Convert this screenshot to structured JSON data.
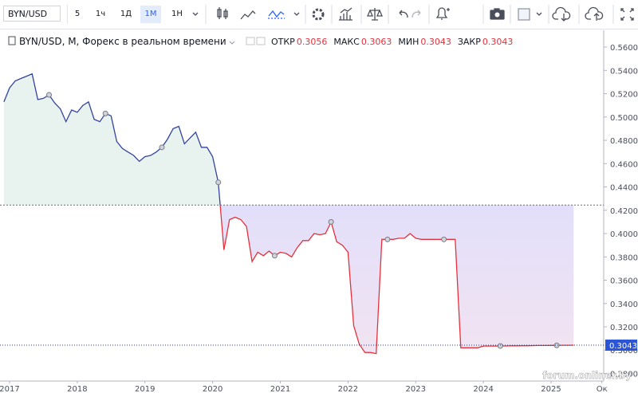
{
  "toolbar": {
    "symbol": "BYN/USD",
    "intervals": [
      "5",
      "1ч",
      "1Д",
      "1М",
      "1Н"
    ],
    "active_interval": 3
  },
  "chart_data": {
    "type": "baseline",
    "title": "BYN/USD, M, Форекс в реальном времени",
    "ohlc": [
      {
        "label": "ОТКР",
        "value": 0.3056
      },
      {
        "label": "МАКС",
        "value": 0.3063
      },
      {
        "label": "МИН",
        "value": 0.3043
      },
      {
        "label": "ЗАКР",
        "value": 0.3043
      }
    ],
    "categories": [
      null,
      "2017",
      null,
      null,
      null,
      null,
      null,
      null,
      null,
      null,
      null,
      null,
      null,
      "2018",
      null,
      null,
      null,
      null,
      null,
      null,
      null,
      null,
      null,
      null,
      null,
      "2019",
      null,
      null,
      null,
      null,
      null,
      null,
      null,
      null,
      null,
      null,
      null,
      "2020",
      null,
      null,
      null,
      null,
      null,
      null,
      null,
      null,
      null,
      null,
      null,
      "2021",
      null,
      null,
      null,
      null,
      null,
      null,
      null,
      null,
      null,
      null,
      null,
      "2022",
      null,
      null,
      null,
      null,
      null,
      null,
      null,
      null,
      null,
      null,
      null,
      "2023",
      null,
      null,
      null,
      null,
      null,
      null,
      null,
      null,
      null,
      null,
      null,
      "2024",
      null,
      null,
      null,
      null,
      null,
      null,
      null,
      null,
      null,
      null,
      null,
      "2025",
      null,
      null,
      null,
      null,
      null,
      null,
      null,
      null,
      "Ок"
    ],
    "values": [
      0.513,
      0.525,
      0.531,
      0.533,
      0.535,
      0.537,
      0.515,
      0.516,
      0.519,
      0.512,
      0.507,
      0.496,
      0.506,
      0.504,
      0.51,
      0.513,
      0.498,
      0.496,
      0.503,
      0.501,
      0.479,
      0.473,
      0.47,
      0.467,
      0.462,
      0.466,
      0.467,
      0.47,
      0.474,
      0.481,
      0.49,
      0.492,
      0.477,
      0.482,
      0.487,
      0.474,
      0.474,
      0.466,
      0.444,
      0.386,
      0.412,
      0.414,
      0.412,
      0.406,
      0.376,
      0.384,
      0.381,
      0.385,
      0.381,
      0.384,
      0.383,
      0.38,
      0.388,
      0.394,
      0.394,
      0.4,
      0.399,
      0.4,
      0.41,
      0.393,
      0.39,
      0.384,
      0.321,
      0.305,
      0.298,
      0.298,
      0.297,
      0.395,
      0.395,
      0.395,
      0.396,
      0.396,
      0.4,
      0.396,
      0.395,
      0.395,
      0.395,
      0.395,
      0.395,
      0.395,
      0.395,
      0.302,
      0.302,
      0.302,
      0.302,
      0.3035,
      0.3035,
      0.3035,
      0.3036,
      0.3036,
      0.3037,
      0.3037,
      0.3038,
      0.3038,
      0.3039,
      0.304,
      0.304,
      0.3041,
      0.3041,
      0.3042,
      0.3042,
      0.3043,
      null,
      null,
      null,
      null,
      null
    ],
    "baseline": 0.4245,
    "color_above": "#33439c",
    "color_below": "#e5313c",
    "fill_above": "#e8f3f0",
    "fill_below": "#e2dffa",
    "last_price": 0.3043,
    "last_price_color": "#2a55d8",
    "ylim": [
      0.2735,
      0.5744
    ],
    "yticks": [
      {
        "value": 0.28,
        "label": "0.2800"
      },
      {
        "value": 0.3,
        "label": "0.3000"
      },
      {
        "value": 0.32,
        "label": "0.3200"
      },
      {
        "value": 0.34,
        "label": "0.3400"
      },
      {
        "value": 0.36,
        "label": "0.3600"
      },
      {
        "value": 0.38,
        "label": "0.3800"
      },
      {
        "value": 0.4,
        "label": "0.4000"
      },
      {
        "value": 0.42,
        "label": "0.4200"
      },
      {
        "value": 0.44,
        "label": "0.4400"
      },
      {
        "value": 0.46,
        "label": "0.4600"
      },
      {
        "value": 0.48,
        "label": "0.4800"
      },
      {
        "value": 0.5,
        "label": "0.5000"
      },
      {
        "value": 0.52,
        "label": "0.5200"
      },
      {
        "value": 0.54,
        "label": "0.5400"
      },
      {
        "value": 0.56,
        "label": "0.5600"
      }
    ],
    "watermark": "forum.onliner.by"
  }
}
